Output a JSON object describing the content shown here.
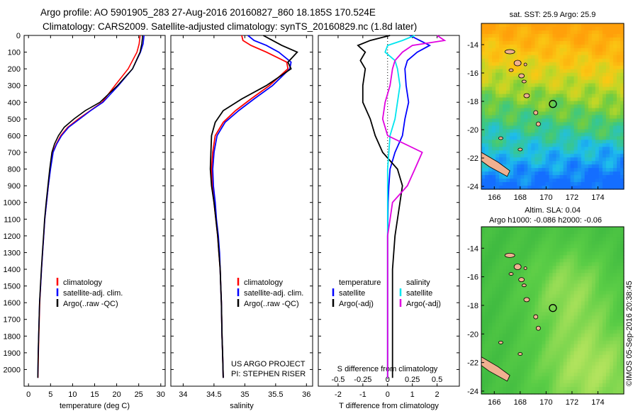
{
  "title_line1": "Argo profile: AO 5901905_283 27-Aug-2016 20160827_860 18.185S 170.524E",
  "title_line2": "Climatology: CARS2009. Satellite-adjusted climatology: synTS_20160829.nc (1.8d later)",
  "timestamp": "©IMOS 05-Sep-2016 20:38:45",
  "colors": {
    "clim": "#ff0000",
    "sat": "#0000ff",
    "argo": "#000000",
    "sat_s": "#00e5ee",
    "argo_s": "#e000e0"
  },
  "chart_data": [
    {
      "type": "line",
      "xlabel": "temperature (deg C)",
      "ylim": [
        2100,
        0
      ],
      "xlim": [
        -1,
        31
      ],
      "xticks": [
        "0",
        "5",
        "10",
        "15",
        "20",
        "25",
        "30"
      ],
      "xtick_values": [
        0,
        5,
        10,
        15,
        20,
        25,
        30
      ],
      "yticks": [
        "0",
        "100",
        "200",
        "300",
        "400",
        "500",
        "600",
        "700",
        "800",
        "900",
        "1000",
        "1100",
        "1200",
        "1300",
        "1400",
        "1500",
        "1600",
        "1700",
        "1800",
        "1900",
        "2000"
      ],
      "legend": [
        "climatology",
        "satellite-adj. clim.",
        "Argo(..raw -QC)"
      ],
      "series": [
        {
          "name": "climatology",
          "color": "#ff0000",
          "x": [
            25.3,
            25.1,
            24.6,
            22.6,
            19.6,
            16.7,
            14.0,
            11.3,
            8.9,
            7.3,
            6.3,
            5.5,
            4.95,
            4.5,
            4.1,
            3.7,
            3.45,
            3.2,
            2.95,
            2.75,
            2.55,
            2.35,
            2.25,
            2.15
          ],
          "y": [
            0,
            50,
            100,
            200,
            300,
            400,
            450,
            500,
            550,
            600,
            650,
            700,
            800,
            900,
            1000,
            1100,
            1200,
            1300,
            1400,
            1500,
            1600,
            1800,
            1900,
            2050
          ]
        },
        {
          "name": "satellite-adj. clim.",
          "color": "#0000ff",
          "x": [
            26.2,
            26.0,
            25.4,
            23.6,
            20.4,
            16.9,
            14.1,
            11.6,
            9.1,
            7.5,
            6.4,
            5.6,
            5.0,
            4.5,
            4.1,
            3.7,
            3.45,
            3.2,
            2.95,
            2.75,
            2.5,
            2.3,
            2.2,
            2.1
          ],
          "y": [
            0,
            50,
            100,
            200,
            300,
            400,
            450,
            500,
            550,
            600,
            650,
            700,
            800,
            900,
            1000,
            1100,
            1200,
            1300,
            1400,
            1500,
            1600,
            1800,
            1900,
            2050
          ]
        },
        {
          "name": "Argo(..raw -QC)",
          "color": "#000000",
          "x": [
            25.9,
            25.7,
            25.3,
            23.6,
            20.2,
            16.2,
            12.9,
            10.3,
            8.1,
            6.8,
            5.9,
            5.3,
            4.8,
            4.4,
            4.0,
            3.65,
            3.4,
            3.15,
            2.9,
            2.7,
            2.5,
            2.3,
            2.2,
            2.1
          ],
          "y": [
            0,
            50,
            100,
            200,
            300,
            400,
            450,
            500,
            550,
            600,
            650,
            700,
            800,
            900,
            1000,
            1100,
            1200,
            1300,
            1400,
            1500,
            1600,
            1800,
            1900,
            2050
          ]
        }
      ]
    },
    {
      "type": "line",
      "xlabel": "salinity",
      "ylim": [
        2100,
        0
      ],
      "xlim": [
        33.8,
        36.1
      ],
      "xticks": [
        "34",
        "34.5",
        "35",
        "35.5",
        "36"
      ],
      "xtick_values": [
        34,
        34.5,
        35,
        35.5,
        36
      ],
      "legend": [
        "climatology",
        "satellite-adj. clim.",
        "Argo(..raw -QC)"
      ],
      "annotations": [
        "US ARGO PROJECT",
        "PI: STEPHEN RISER"
      ],
      "series": [
        {
          "name": "climatology",
          "color": "#ff0000",
          "x": [
            34.95,
            34.97,
            35.1,
            35.35,
            35.68,
            35.7,
            35.4,
            35.1,
            34.85,
            34.65,
            34.52,
            34.48,
            34.46,
            34.47,
            34.5,
            34.53,
            34.56,
            34.58,
            34.6,
            34.61,
            34.62,
            34.63,
            34.64,
            34.65
          ],
          "y": [
            0,
            30,
            60,
            100,
            160,
            200,
            300,
            380,
            450,
            520,
            600,
            700,
            800,
            900,
            1000,
            1100,
            1200,
            1300,
            1400,
            1500,
            1600,
            1800,
            1900,
            2050
          ]
        },
        {
          "name": "satellite-adj. clim.",
          "color": "#0000ff",
          "x": [
            35.05,
            35.15,
            35.35,
            35.55,
            35.75,
            35.73,
            35.45,
            35.15,
            34.9,
            34.68,
            34.55,
            34.5,
            34.48,
            34.49,
            34.52,
            34.54,
            34.57,
            34.59,
            34.6,
            34.61,
            34.62,
            34.63,
            34.64,
            34.65
          ],
          "y": [
            0,
            30,
            60,
            100,
            160,
            200,
            300,
            380,
            450,
            520,
            600,
            700,
            800,
            900,
            1000,
            1100,
            1200,
            1300,
            1400,
            1500,
            1600,
            1800,
            1900,
            2050
          ]
        },
        {
          "name": "Argo(..raw -QC)",
          "color": "#000000",
          "x": [
            35.3,
            35.45,
            35.6,
            35.85,
            35.7,
            35.75,
            35.35,
            34.95,
            34.65,
            34.52,
            34.46,
            34.45,
            34.44,
            34.46,
            34.5,
            34.53,
            34.56,
            34.58,
            34.6,
            34.61,
            34.62,
            34.63,
            34.64,
            34.65
          ],
          "y": [
            0,
            30,
            60,
            100,
            160,
            200,
            300,
            380,
            450,
            520,
            600,
            700,
            800,
            900,
            1000,
            1100,
            1200,
            1300,
            1400,
            1500,
            1600,
            1800,
            1900,
            2050
          ]
        }
      ]
    },
    {
      "type": "line",
      "xlabel": "T difference from climatology",
      "x2label": "S difference from climatology",
      "ylim": [
        2100,
        0
      ],
      "xlim": [
        -2.8,
        2.9
      ],
      "xticks": [
        "-2",
        "-1",
        "0",
        "1",
        "2"
      ],
      "xtick_values": [
        -2,
        -1,
        0,
        1,
        2
      ],
      "x2ticks": [
        "-0.5",
        "-0.25",
        "0",
        "0.25",
        "0.5"
      ],
      "x2tick_values": [
        -2,
        -1,
        0,
        1,
        2
      ],
      "legend": [
        "temperature",
        "satellite",
        "Argo(-adj)",
        "salinity",
        "satellite",
        "Argo(-adj)"
      ],
      "series": [
        {
          "name": "satellite",
          "quantity": "temperature",
          "color": "#0000ff",
          "x": [
            0.9,
            1.3,
            1.7,
            1.2,
            0.8,
            0.7,
            0.75,
            0.85,
            0.7,
            0.6,
            0.3,
            0.1,
            0.05,
            0.02,
            0.0,
            0.0,
            0.0,
            0.0,
            0.0,
            0.0
          ],
          "y": [
            0,
            30,
            60,
            100,
            150,
            200,
            300,
            400,
            500,
            600,
            700,
            800,
            900,
            1000,
            1200,
            1400,
            1600,
            1800,
            1900,
            2050
          ]
        },
        {
          "name": "Argo(-adj)",
          "quantity": "temperature",
          "color": "#000000",
          "x": [
            0.1,
            -0.7,
            -1.2,
            -0.9,
            -1.1,
            -0.9,
            -1.0,
            -1.0,
            -0.7,
            -0.5,
            -0.2,
            0.4,
            0.6,
            0.5,
            0.3,
            0.2,
            0.2,
            0.2,
            0.2,
            0.2
          ],
          "y": [
            0,
            30,
            60,
            100,
            150,
            200,
            300,
            400,
            500,
            600,
            700,
            800,
            900,
            1000,
            1200,
            1400,
            1600,
            1800,
            1900,
            2050
          ]
        },
        {
          "name": "satellite",
          "quantity": "salinity",
          "color": "#00e5ee",
          "x": [
            1.1,
            0.6,
            0.0,
            -0.1,
            0.3,
            0.4,
            0.5,
            0.4,
            0.3,
            0.1,
            0.05,
            0.0,
            0.0,
            0.0,
            0.0,
            0.0,
            0.0,
            0.0,
            0.0,
            0.0
          ],
          "y": [
            0,
            30,
            60,
            100,
            150,
            200,
            300,
            400,
            500,
            600,
            700,
            800,
            900,
            1000,
            1200,
            1400,
            1600,
            1800,
            1900,
            2050
          ]
        },
        {
          "name": "Argo(-adj)",
          "quantity": "salinity",
          "color": "#e000e0",
          "x": [
            2.0,
            2.3,
            1.0,
            0.6,
            0.3,
            0.2,
            0.1,
            -0.1,
            -0.2,
            0.0,
            1.4,
            1.1,
            0.8,
            0.2,
            0.0,
            0.0,
            0.0,
            0.0,
            0.0,
            0.0
          ],
          "y": [
            0,
            30,
            60,
            100,
            150,
            200,
            300,
            400,
            500,
            600,
            700,
            800,
            900,
            1000,
            1200,
            1400,
            1600,
            1800,
            1900,
            2050
          ]
        }
      ]
    },
    {
      "type": "heatmap",
      "title": "sat. SST: 25.9 Argo: 25.9",
      "xticks": [
        "166",
        "168",
        "170",
        "172",
        "174"
      ],
      "yticks": [
        "-14",
        "-16",
        "-18",
        "-20",
        "-22",
        "-24"
      ],
      "xlim": [
        165,
        176
      ],
      "ylim": [
        -24.2,
        -12.5
      ],
      "marker": {
        "lon": 170.524,
        "lat": -18.185
      }
    },
    {
      "type": "heatmap",
      "title": "Altim. SLA: 0.04",
      "subtitle": "Argo h1000: -0.086 h2000: -0.06",
      "xticks": [
        "166",
        "168",
        "170",
        "172",
        "174"
      ],
      "yticks": [
        "-14",
        "-16",
        "-18",
        "-20",
        "-22",
        "-24"
      ],
      "xlim": [
        165,
        176
      ],
      "ylim": [
        -24.2,
        -12.5
      ],
      "marker": {
        "lon": 170.524,
        "lat": -18.185
      }
    }
  ]
}
